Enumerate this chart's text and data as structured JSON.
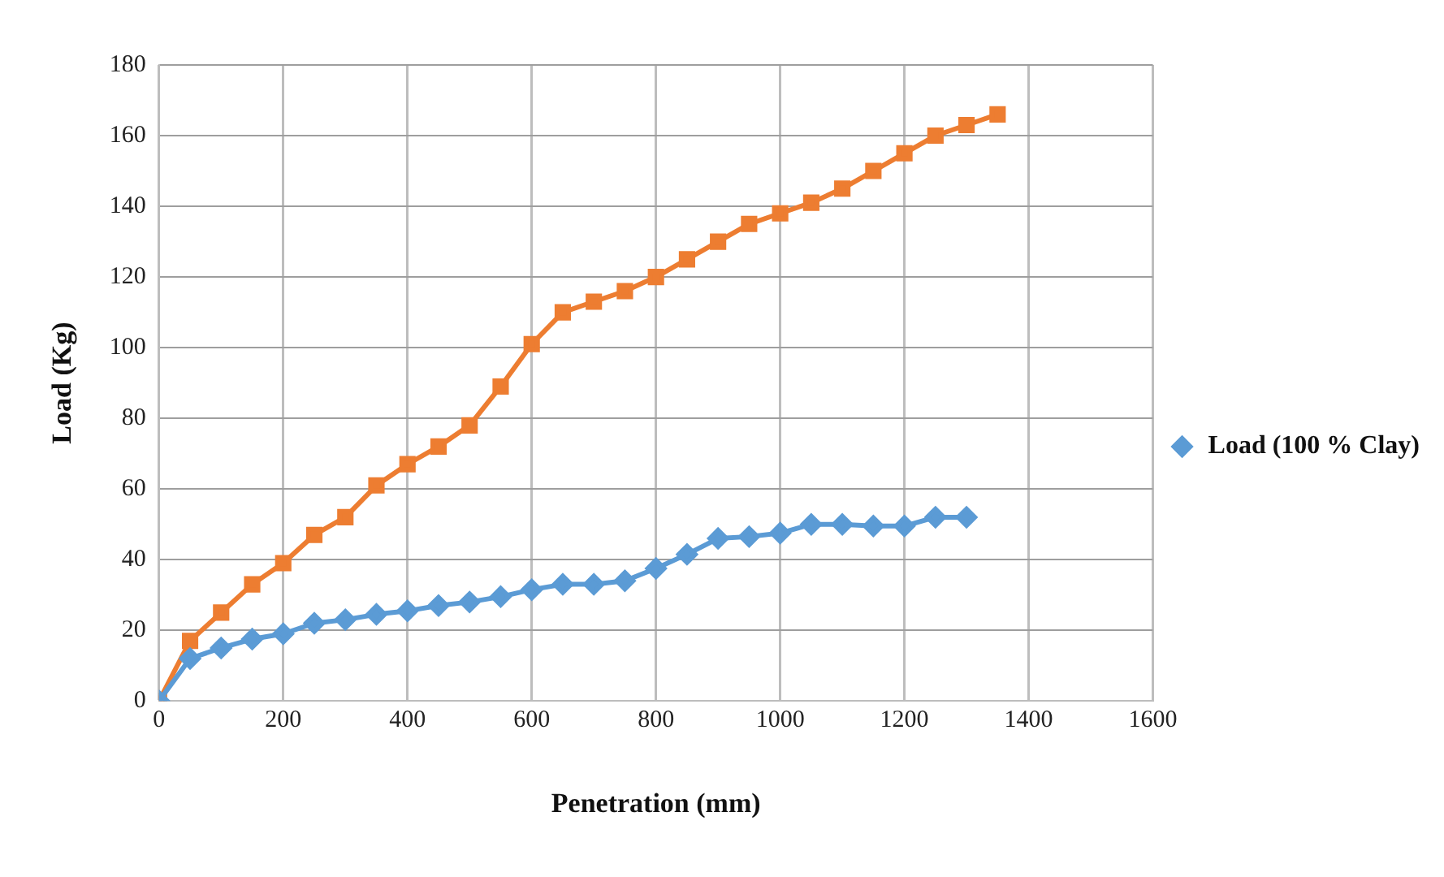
{
  "chart_data": {
    "type": "line",
    "xlabel": "Penetration (mm)",
    "ylabel": "Load (Kg)",
    "xlim": [
      0,
      1600
    ],
    "xticks": [
      0,
      200,
      400,
      600,
      800,
      1000,
      1200,
      1400,
      1600
    ],
    "ylim": [
      0,
      180
    ],
    "yticks": [
      0,
      20,
      40,
      60,
      80,
      100,
      120,
      140,
      160,
      180
    ],
    "grid": true,
    "legend": "right",
    "series": [
      {
        "name": "Load (100 % Clay)",
        "color": "#5b9bd5",
        "marker": "diamond",
        "x": [
          0,
          50,
          100,
          150,
          200,
          250,
          300,
          350,
          400,
          450,
          500,
          550,
          600,
          650,
          700,
          750,
          800,
          850,
          900,
          950,
          1000,
          1050,
          1100,
          1150,
          1200,
          1250,
          1300
        ],
        "values": [
          0,
          12,
          15,
          17.5,
          19,
          22,
          23,
          24.5,
          25.5,
          27,
          28,
          29.5,
          31.5,
          33,
          33,
          34,
          37.5,
          41.5,
          46,
          46.5,
          47.5,
          50,
          50,
          49.5,
          49.5,
          52,
          52
        ]
      },
      {
        "color": "#ed7d31",
        "marker": "square",
        "x": [
          0,
          50,
          100,
          150,
          200,
          250,
          300,
          350,
          400,
          450,
          500,
          550,
          600,
          650,
          700,
          750,
          800,
          850,
          900,
          950,
          1000,
          1050,
          1100,
          1150,
          1200,
          1250,
          1300,
          1350
        ],
        "values": [
          0,
          17,
          25,
          33,
          39,
          47,
          52,
          61,
          67,
          72,
          78,
          89,
          101,
          110,
          113,
          116,
          120,
          125,
          130,
          135,
          138,
          141,
          145,
          150,
          155,
          160,
          163,
          166
        ]
      }
    ]
  }
}
